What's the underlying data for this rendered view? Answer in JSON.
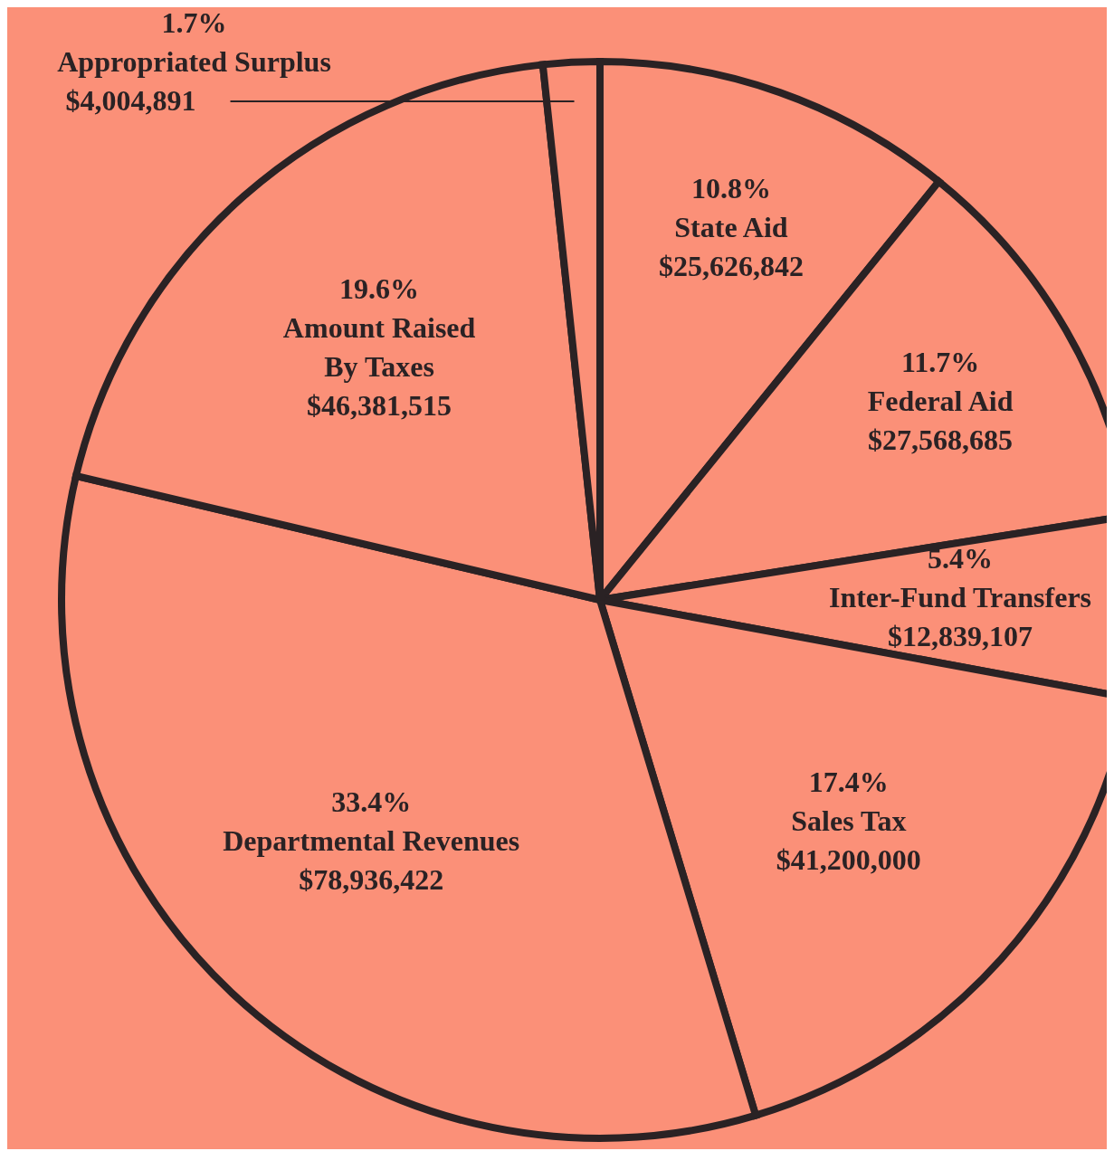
{
  "chart_data": {
    "type": "pie",
    "categories": [
      "State Aid",
      "Federal Aid",
      "Inter-Fund Transfers",
      "Sales Tax",
      "Departmental Revenues",
      "Amount Raised\nBy Taxes",
      "Appropriated Surplus"
    ],
    "values": [
      25626842,
      27568685,
      12839107,
      41200000,
      78936422,
      46381515,
      4004891
    ],
    "annotations": [
      {
        "text": "10.8%",
        "x": "State Aid"
      },
      {
        "text": "11.7%",
        "x": "Federal Aid"
      },
      {
        "text": "5.4%",
        "x": "Inter-Fund Transfers"
      },
      {
        "text": "17.4%",
        "x": "Sales Tax"
      },
      {
        "text": "33.4%",
        "x": "Departmental Revenues"
      },
      {
        "text": "19.6%",
        "x": "Amount Raised\nBy Taxes"
      },
      {
        "text": "1.7%",
        "x": "Appropriated Surplus"
      }
    ],
    "value_labels": [
      "$25,626,842",
      "$27,568,685",
      "$12,839,107",
      "$41,200,000",
      "$78,936,422",
      "$46,381,515",
      "$4,004,891"
    ],
    "colors": [
      "#fb9078",
      "#fb9078",
      "#fb9078",
      "#fb9078",
      "#fb9078",
      "#fb9078",
      "#fb9078"
    ]
  }
}
